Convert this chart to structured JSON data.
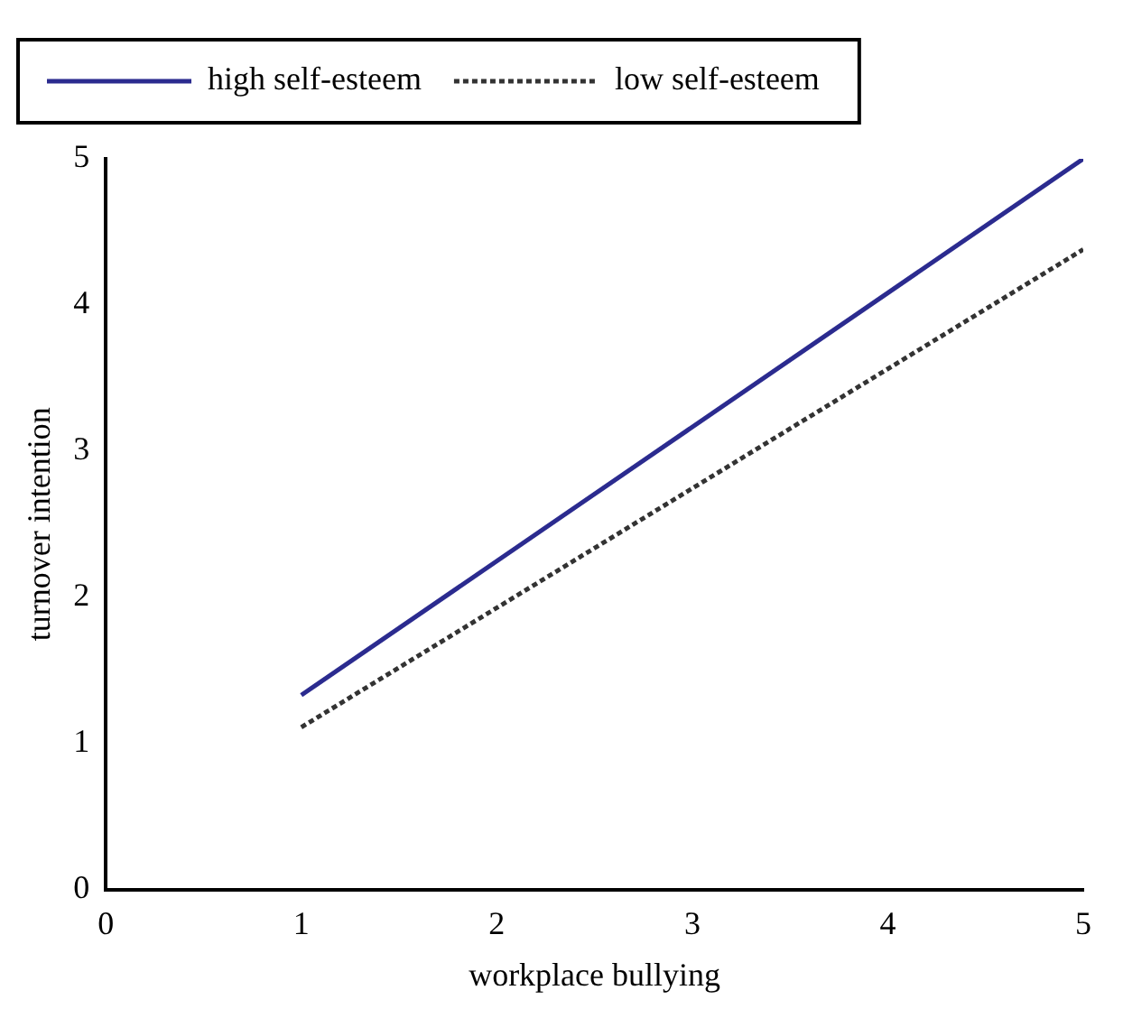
{
  "chart_data": {
    "type": "line",
    "xlabel": "workplace bullying",
    "ylabel": "turnover intention",
    "x": [
      1,
      5
    ],
    "series": [
      {
        "name": "high self-esteem",
        "color": "#2b2b8f",
        "values": [
          1.33,
          5.0
        ],
        "line_style": "solid"
      },
      {
        "name": "low self-esteem",
        "color": "#333333",
        "values": [
          1.11,
          4.38
        ],
        "line_style": "dotted"
      }
    ],
    "xlim": [
      0,
      5
    ],
    "xticks": [
      0,
      1,
      2,
      3,
      4,
      5
    ],
    "ylim": [
      0,
      5
    ],
    "yticks": [
      0,
      1,
      2,
      3,
      4,
      5
    ],
    "grid": false,
    "legend": "top left",
    "marker": "none"
  }
}
